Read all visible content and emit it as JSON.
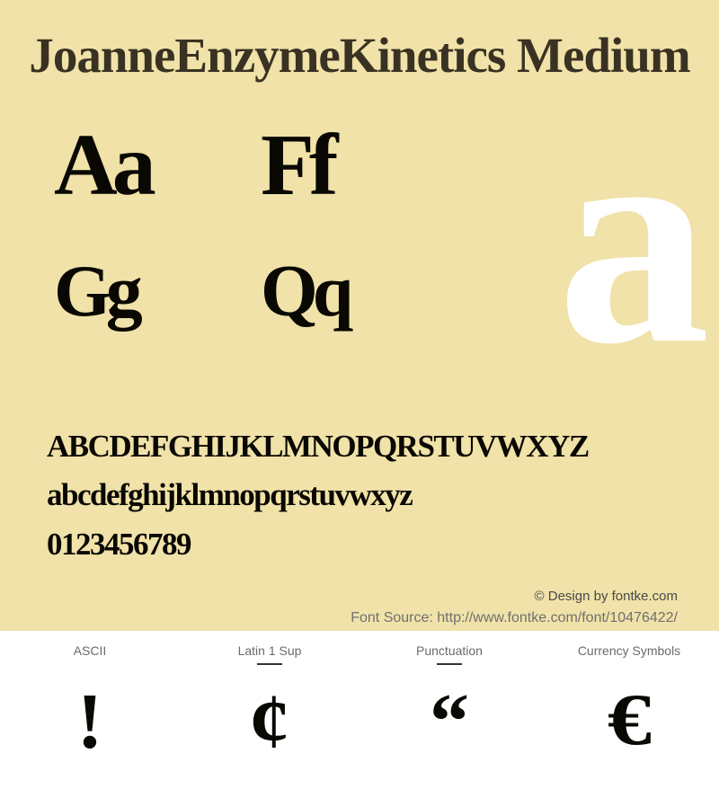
{
  "colors": {
    "preview_bg": "#f0e2a8",
    "title_text": "#393223",
    "glyph_dark": "#0a0803",
    "big_glyph": "#ffffff",
    "categories_bg": "#ffffff",
    "cat_label": "#6b6b6b",
    "credit_text": "#4a4a4a",
    "source_text": "#707070"
  },
  "title": "JoanneEnzymeKinetics Medium",
  "sample_pairs": {
    "row1_left": "Aa",
    "row1_right": "Ff",
    "row2_left": "Gg",
    "row2_right": "Qq"
  },
  "big_glyph": "a",
  "alpha": {
    "upper": "ABCDEFGHIJKLMNOPQRSTUVWXYZ",
    "lower": "abcdefghijklmnopqrstuvwxyz",
    "digits": "0123456789"
  },
  "credit": "© Design by fontke.com",
  "source": "Font Source: http://www.fontke.com/font/10476422/",
  "categories": [
    {
      "label": "ASCII",
      "glyph": "!",
      "underline": false
    },
    {
      "label": "Latin 1 Sup",
      "glyph": "¢",
      "underline": true
    },
    {
      "label": "Punctuation",
      "glyph": "“",
      "underline": true
    },
    {
      "label": "Currency Symbols",
      "glyph": "€",
      "underline": false
    }
  ]
}
